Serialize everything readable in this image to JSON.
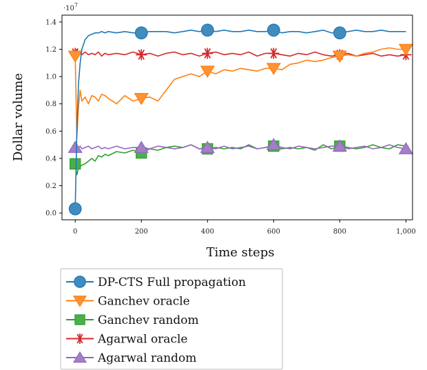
{
  "chart_data": {
    "type": "line",
    "title": "",
    "xlabel": "Time steps",
    "ylabel": "Dollar volume",
    "y_scale_label": "·10^7",
    "y_exponent_text": "7",
    "xlim": [
      -40,
      1020
    ],
    "ylim": [
      -0.05,
      1.45
    ],
    "x_ticks": [
      0,
      200,
      400,
      600,
      800,
      1000
    ],
    "x_tick_labels": [
      "0",
      "200",
      "400",
      "600",
      "800",
      "1,000"
    ],
    "y_ticks": [
      0,
      0.2,
      0.4,
      0.6,
      0.8,
      1.0,
      1.2,
      1.4
    ],
    "y_tick_labels": [
      "0.0",
      "0.2",
      "0.4",
      "0.6",
      "0.8",
      "1.0",
      "1.2",
      "1.4"
    ],
    "grid": false,
    "legend_position": "below the plot, left",
    "x_sampled": [
      0,
      5,
      10,
      15,
      20,
      30,
      40,
      50,
      60,
      70,
      80,
      90,
      100,
      125,
      150,
      175,
      200,
      225,
      250,
      275,
      300,
      325,
      350,
      375,
      400,
      425,
      450,
      475,
      500,
      525,
      550,
      575,
      600,
      625,
      650,
      675,
      700,
      725,
      750,
      775,
      800,
      825,
      850,
      875,
      900,
      925,
      950,
      975,
      1000
    ],
    "series": [
      {
        "name": "DP-CTS Full propagation",
        "color": "#1f77b4",
        "marker": "circle",
        "marker_x": [
          0,
          200,
          400,
          600,
          800
        ],
        "marker_y": [
          0.03,
          1.32,
          1.34,
          1.34,
          1.32
        ],
        "values": [
          0.03,
          0.6,
          0.95,
          1.1,
          1.2,
          1.27,
          1.3,
          1.31,
          1.32,
          1.32,
          1.33,
          1.32,
          1.33,
          1.32,
          1.33,
          1.32,
          1.32,
          1.33,
          1.33,
          1.33,
          1.32,
          1.33,
          1.34,
          1.33,
          1.34,
          1.33,
          1.34,
          1.33,
          1.33,
          1.34,
          1.33,
          1.33,
          1.34,
          1.32,
          1.33,
          1.33,
          1.32,
          1.33,
          1.34,
          1.32,
          1.32,
          1.33,
          1.34,
          1.33,
          1.33,
          1.34,
          1.33,
          1.33,
          1.33
        ]
      },
      {
        "name": "Ganchev oracle",
        "color": "#ff7f0e",
        "marker": "triangle-down",
        "marker_x": [
          0,
          200,
          400,
          600,
          800,
          1000
        ],
        "marker_y": [
          1.15,
          0.84,
          1.04,
          1.06,
          1.15,
          1.2
        ],
        "values": [
          1.15,
          0.55,
          0.78,
          0.9,
          0.82,
          0.85,
          0.8,
          0.86,
          0.85,
          0.82,
          0.87,
          0.86,
          0.84,
          0.8,
          0.86,
          0.82,
          0.84,
          0.85,
          0.82,
          0.9,
          0.98,
          1.0,
          1.02,
          1.0,
          1.04,
          1.02,
          1.05,
          1.04,
          1.06,
          1.05,
          1.04,
          1.06,
          1.06,
          1.05,
          1.09,
          1.1,
          1.12,
          1.11,
          1.12,
          1.14,
          1.15,
          1.16,
          1.15,
          1.17,
          1.18,
          1.2,
          1.21,
          1.2,
          1.2
        ]
      },
      {
        "name": "Ganchev random",
        "color": "#2ca02c",
        "marker": "square",
        "marker_x": [
          0,
          200,
          400,
          600,
          800
        ],
        "marker_y": [
          0.36,
          0.44,
          0.47,
          0.49,
          0.49
        ],
        "values": [
          0.36,
          0.28,
          0.33,
          0.34,
          0.35,
          0.36,
          0.38,
          0.4,
          0.38,
          0.42,
          0.41,
          0.43,
          0.42,
          0.45,
          0.44,
          0.46,
          0.44,
          0.47,
          0.46,
          0.48,
          0.49,
          0.48,
          0.5,
          0.47,
          0.47,
          0.48,
          0.47,
          0.48,
          0.47,
          0.5,
          0.47,
          0.48,
          0.49,
          0.47,
          0.48,
          0.47,
          0.48,
          0.46,
          0.5,
          0.47,
          0.49,
          0.48,
          0.47,
          0.48,
          0.5,
          0.48,
          0.47,
          0.5,
          0.49
        ]
      },
      {
        "name": "Agarwal oracle",
        "color": "#d62728",
        "marker": "asterisk",
        "marker_x": [
          0,
          200,
          400,
          600,
          800,
          1000
        ],
        "marker_y": [
          1.17,
          1.16,
          1.17,
          1.17,
          1.16,
          1.16
        ],
        "values": [
          1.17,
          1.2,
          1.15,
          1.17,
          1.16,
          1.18,
          1.16,
          1.17,
          1.16,
          1.18,
          1.15,
          1.17,
          1.16,
          1.17,
          1.16,
          1.18,
          1.16,
          1.17,
          1.15,
          1.17,
          1.18,
          1.16,
          1.17,
          1.15,
          1.17,
          1.18,
          1.16,
          1.17,
          1.16,
          1.18,
          1.15,
          1.17,
          1.17,
          1.16,
          1.15,
          1.17,
          1.16,
          1.18,
          1.16,
          1.15,
          1.16,
          1.17,
          1.15,
          1.16,
          1.17,
          1.15,
          1.16,
          1.15,
          1.16
        ]
      },
      {
        "name": "Agarwal random",
        "color": "#9467bd",
        "marker": "triangle-up",
        "marker_x": [
          0,
          200,
          400,
          600,
          800,
          1000
        ],
        "marker_y": [
          0.48,
          0.48,
          0.48,
          0.5,
          0.49,
          0.47
        ],
        "values": [
          0.48,
          0.5,
          0.48,
          0.49,
          0.47,
          0.48,
          0.49,
          0.47,
          0.48,
          0.49,
          0.47,
          0.48,
          0.47,
          0.49,
          0.47,
          0.48,
          0.48,
          0.47,
          0.49,
          0.48,
          0.47,
          0.48,
          0.5,
          0.47,
          0.48,
          0.47,
          0.49,
          0.47,
          0.48,
          0.49,
          0.47,
          0.48,
          0.5,
          0.48,
          0.47,
          0.49,
          0.48,
          0.47,
          0.48,
          0.49,
          0.49,
          0.47,
          0.48,
          0.49,
          0.47,
          0.48,
          0.5,
          0.48,
          0.47
        ]
      }
    ]
  }
}
